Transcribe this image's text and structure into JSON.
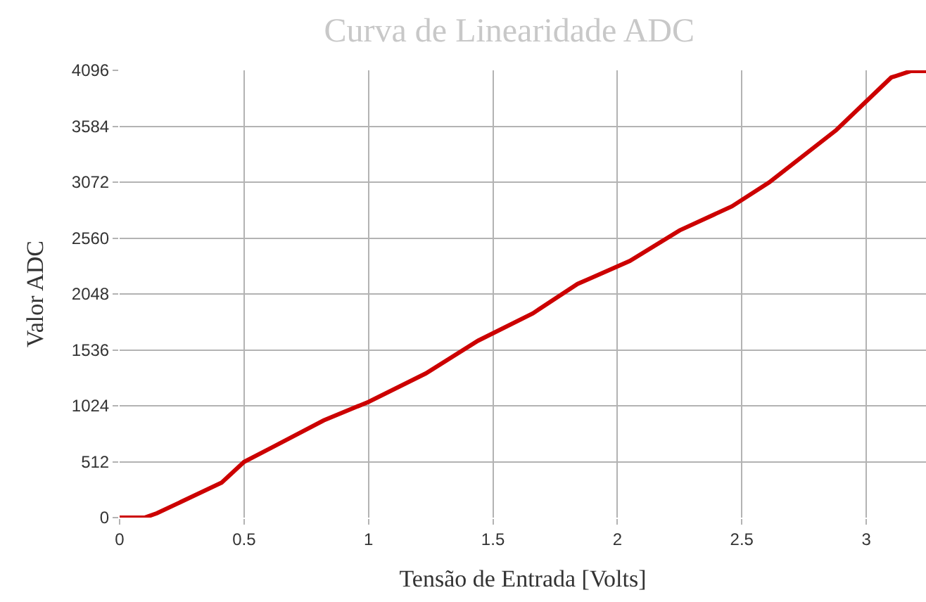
{
  "chart_data": {
    "type": "line",
    "title": "Curva de Linearidade ADC",
    "xlabel": "Tensão de Entrada [Volts]",
    "ylabel": "Valor ADC",
    "x": [
      0,
      0.1,
      0.15,
      0.41,
      0.5,
      0.61,
      0.82,
      1.0,
      1.23,
      1.44,
      1.66,
      1.84,
      1.89,
      2.05,
      2.25,
      2.46,
      2.61,
      2.88,
      3.1,
      3.18,
      3.24
    ],
    "series": [
      {
        "color": "#cc0000",
        "values": [
          0,
          0,
          40,
          320,
          510,
          640,
          890,
          1060,
          1320,
          1620,
          1870,
          2140,
          2190,
          2350,
          2630,
          2850,
          3070,
          3550,
          4030,
          4090,
          4090
        ]
      }
    ],
    "xlim": [
      0,
      3.24
    ],
    "xticks": [
      0,
      0.5,
      1,
      1.5,
      2,
      2.5,
      3
    ],
    "ylim": [
      0,
      4096
    ],
    "yticks": [
      0,
      512,
      1024,
      1536,
      2048,
      2560,
      3072,
      3584,
      4096
    ],
    "grid": true,
    "marker": "none",
    "line_style": "solid"
  }
}
